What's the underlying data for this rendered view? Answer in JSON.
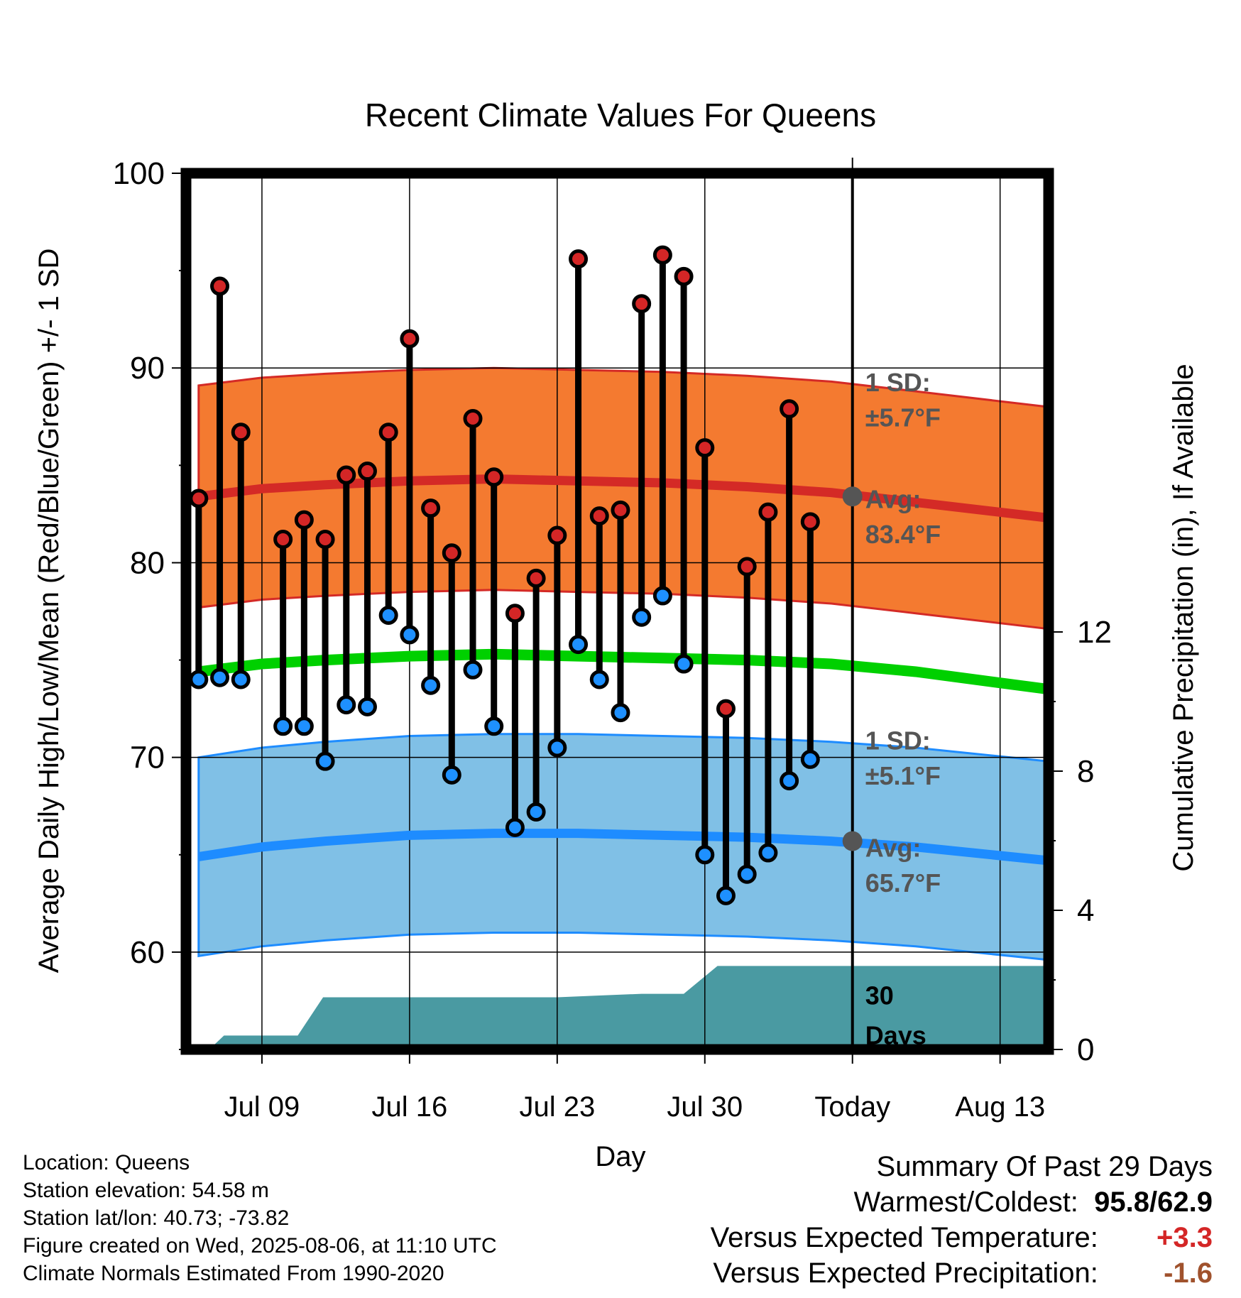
{
  "chart_data": {
    "type": "line",
    "title": "Recent Climate Values For Queens",
    "xlabel": "Day",
    "ylabel": "Average Daily High/Low/Mean (Red/Blue/Green) +/- 1 SD",
    "y2label": "Cumulative Precipitation (in), If Available",
    "ylim": [
      55,
      100
    ],
    "y2lim": [
      0,
      12
    ],
    "y_ticks": [
      "60",
      "70",
      "80",
      "90",
      "100"
    ],
    "y2_ticks": [
      "0",
      "4",
      "8",
      "12"
    ],
    "x_ticks": [
      "Jul 09",
      "Jul 16",
      "Jul 23",
      "Jul 30",
      "Today",
      "Aug 13"
    ],
    "x_tick_days": [
      9,
      16,
      23,
      30,
      37,
      44
    ],
    "x_range": [
      5.4,
      46.3
    ],
    "today_day": 37,
    "grid": true,
    "daily": {
      "days": [
        6,
        7,
        8,
        10,
        11,
        12,
        13,
        14,
        15,
        16,
        17,
        18,
        19,
        20,
        21,
        22,
        23,
        24,
        25,
        26,
        27,
        28,
        29,
        30,
        31,
        32,
        33,
        34,
        35,
        36
      ],
      "high": [
        83.3,
        94.2,
        86.7,
        81.2,
        82.2,
        81.2,
        84.5,
        84.7,
        86.7,
        91.5,
        82.8,
        80.5,
        87.4,
        84.4,
        77.4,
        79.2,
        81.4,
        95.6,
        82.4,
        82.7,
        93.3,
        95.8,
        94.7,
        85.9,
        72.5,
        79.8,
        82.6,
        87.9,
        82.1,
        null
      ],
      "low": [
        74.0,
        74.1,
        74.0,
        71.6,
        71.6,
        69.8,
        72.7,
        72.6,
        77.3,
        76.3,
        73.7,
        69.1,
        74.5,
        71.6,
        66.4,
        67.2,
        70.5,
        75.8,
        74.0,
        72.3,
        77.2,
        78.3,
        74.8,
        65.0,
        62.9,
        64.0,
        65.1,
        68.8,
        69.9,
        null
      ]
    },
    "normals": {
      "days": [
        6,
        9,
        12,
        16,
        20,
        24,
        28,
        32,
        36,
        40,
        46.3
      ],
      "avg_high": [
        83.4,
        83.8,
        84.0,
        84.2,
        84.3,
        84.2,
        84.1,
        83.9,
        83.6,
        83.1,
        82.3
      ],
      "avg_low": [
        64.9,
        65.4,
        65.7,
        66.0,
        66.1,
        66.1,
        66.0,
        65.9,
        65.7,
        65.4,
        64.7
      ],
      "avg_mean": [
        74.4,
        74.8,
        75.0,
        75.2,
        75.3,
        75.2,
        75.1,
        75.0,
        74.8,
        74.4,
        73.5
      ],
      "high_sd": 5.7,
      "low_sd": 5.1
    },
    "precipitation": {
      "days": [
        6.5,
        7.2,
        10.7,
        11.9,
        20,
        23,
        25,
        27,
        29,
        30.6,
        46.3
      ],
      "cumulative": [
        0.0,
        0.4,
        0.4,
        1.5,
        1.5,
        1.5,
        1.55,
        1.6,
        1.6,
        2.4,
        2.4
      ]
    },
    "annotations": {
      "high_sd_label": "1 SD:",
      "high_sd_value": "±5.7°F",
      "high_avg_label": "Avg:",
      "high_avg_value": "83.4°F",
      "low_sd_label": "1 SD:",
      "low_sd_value": "±5.1°F",
      "low_avg_label": "Avg:",
      "low_avg_value": "65.7°F",
      "precip_period_1": "30",
      "precip_period_2": "Days"
    },
    "colors": {
      "high_band": "#f47a30",
      "high_line": "#d42a26",
      "low_band": "#80c0e6",
      "low_line": "#1e8cff",
      "mean_line": "#00d000",
      "precip": "#4a9aa2",
      "high_marker": "#d42626",
      "low_marker": "#1e90ff",
      "avg_marker": "#555555",
      "annotation_text": "#555555"
    }
  },
  "footer": {
    "location": "Location: Queens",
    "elevation": "Station elevation: 54.58 m",
    "latlon": "Station lat/lon: 40.73; -73.82",
    "created": "Figure created on Wed, 2025-08-06, at 11:10 UTC",
    "normals": "Climate Normals Estimated From 1990-2020"
  },
  "summary": {
    "title": "Summary Of Past 29 Days",
    "warmest_label": "Warmest/Coldest:",
    "warmest_value": "95.8",
    "coldest_value": "62.9",
    "temp_label": "Versus Expected Temperature:",
    "temp_value": "+3.3",
    "temp_color": "#d42626",
    "precip_label": "Versus Expected Precipitation:",
    "precip_value": "-1.6",
    "precip_color": "#a0522d"
  }
}
